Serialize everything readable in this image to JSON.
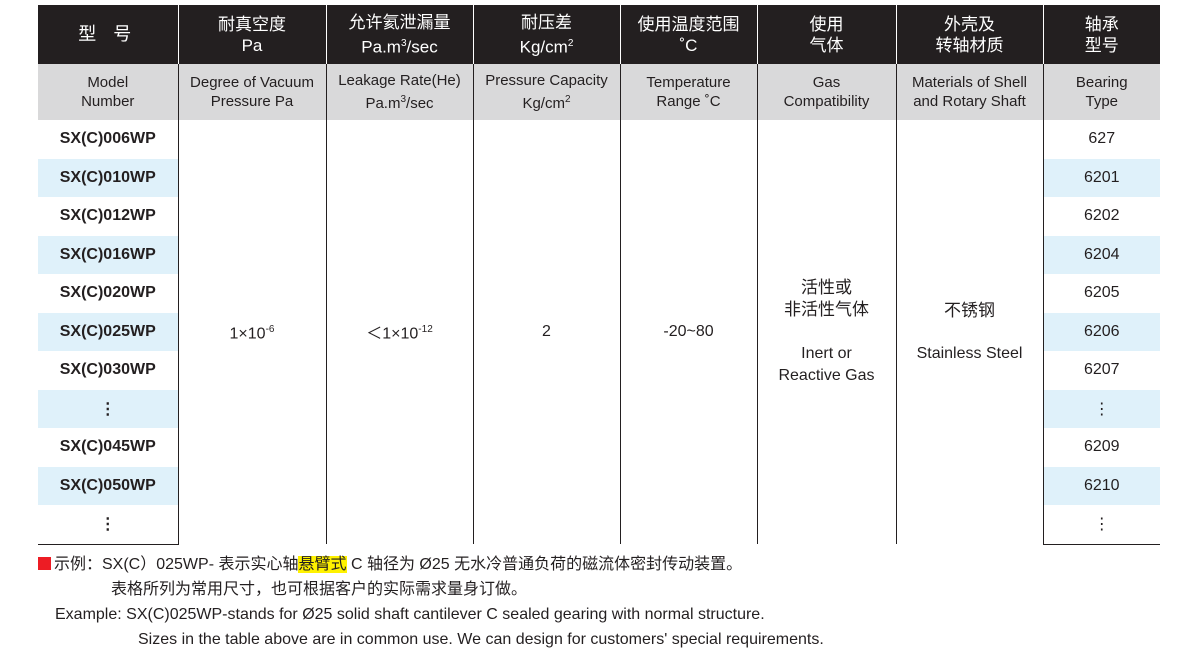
{
  "header_cn": [
    [
      "型 号"
    ],
    [
      "耐真空度",
      "Pa"
    ],
    [
      "允许氦泄漏量",
      "Pa.m",
      "3",
      "/sec"
    ],
    [
      "耐压差",
      "Kg/cm",
      "2"
    ],
    [
      "使用温度范围",
      "˚C"
    ],
    [
      "使用",
      "气体"
    ],
    [
      "外壳及",
      "转轴材质"
    ],
    [
      "轴承",
      "型号"
    ]
  ],
  "header_en": [
    [
      "Model",
      "Number"
    ],
    [
      "Degree of Vacuum",
      "Pressure Pa"
    ],
    [
      "Leakage Rate(He)",
      "Pa.m",
      "3",
      "/sec"
    ],
    [
      "Pressure Capacity",
      "Kg/cm",
      "2"
    ],
    [
      "Temperature",
      "Range ˚C"
    ],
    [
      "Gas",
      "Compatibility"
    ],
    [
      "Materials of Shell",
      "and Rotary Shaft"
    ],
    [
      "Bearing",
      "Type"
    ]
  ],
  "rows": [
    {
      "model": "SX(C)006WP",
      "bearing": "627"
    },
    {
      "model": "SX(C)010WP",
      "bearing": "6201"
    },
    {
      "model": "SX(C)012WP",
      "bearing": "6202"
    },
    {
      "model": "SX(C)016WP",
      "bearing": "6204"
    },
    {
      "model": "SX(C)020WP",
      "bearing": "6205"
    },
    {
      "model": "SX(C)025WP",
      "bearing": "6206"
    },
    {
      "model": "SX(C)030WP",
      "bearing": "6207"
    },
    {
      "model": "⋮",
      "bearing": "⋮"
    },
    {
      "model": "SX(C)045WP",
      "bearing": "6209"
    },
    {
      "model": "SX(C)050WP",
      "bearing": "6210"
    },
    {
      "model": "⋮",
      "bearing": "⋮"
    }
  ],
  "common": {
    "vacuum_base": "1×10",
    "vacuum_exp": "-6",
    "leak_base": "＜1×10",
    "leak_exp": "-12",
    "pressure": "2",
    "temperature": "-20~80",
    "gas_cn1": "活性或",
    "gas_cn2": "非活性气体",
    "gas_en1": "Inert or",
    "gas_en2": "Reactive Gas",
    "material_cn": "不锈钢",
    "material_en": "Stainless Steel"
  },
  "notes": {
    "line1_a": "示例：SX(C）025WP- 表示实心轴",
    "line1_hl": "悬臂式",
    "line1_b": " C 轴径为 Ø25 无水冷普通负荷的磁流体密封传动装置。",
    "line2": "表格所列为常用尺寸，也可根据客户的实际需求量身订做。",
    "line3": "Example: SX(C)025WP-stands for Ø25 solid shaft cantilever C sealed gearing with normal structure.",
    "line4": "Sizes in the table above are in common use. We can design for customers' special requirements."
  },
  "colors": {
    "header": "#231f20",
    "subheader": "#d9d9da",
    "alt_row": "#dff1fa",
    "highlight": "#fff200",
    "marker": "#ed1c24"
  }
}
